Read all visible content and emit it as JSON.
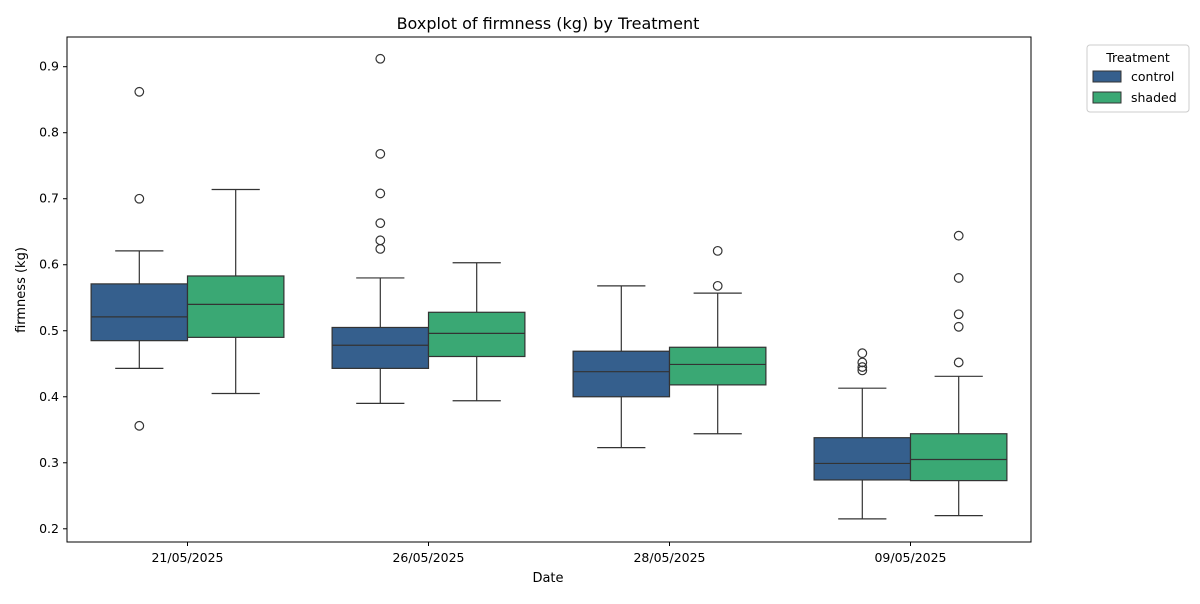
{
  "chart_data": {
    "type": "boxplot",
    "title": "Boxplot of firmness (kg) by Treatment",
    "xlabel": "Date",
    "ylabel": "firmness (kg)",
    "categories": [
      "21/05/2025",
      "26/05/2025",
      "28/05/2025",
      "09/05/2025"
    ],
    "ylim": [
      0.18,
      0.945
    ],
    "yticks": [
      0.2,
      0.3,
      0.4,
      0.5,
      0.6,
      0.7,
      0.8,
      0.9
    ],
    "ytick_labels": [
      "0.2",
      "0.3",
      "0.4",
      "0.5",
      "0.6",
      "0.7",
      "0.8",
      "0.9"
    ],
    "grid": false,
    "legend": {
      "title": "Treatment",
      "placement": "outside-top-right"
    },
    "series": [
      {
        "name": "control",
        "color": "#355f8d",
        "boxes": [
          {
            "whisker_low": 0.443,
            "q1": 0.485,
            "median": 0.521,
            "q3": 0.571,
            "whisker_high": 0.621,
            "outliers": [
              0.862,
              0.7,
              0.356
            ]
          },
          {
            "whisker_low": 0.39,
            "q1": 0.443,
            "median": 0.478,
            "q3": 0.505,
            "whisker_high": 0.58,
            "outliers": [
              0.912,
              0.768,
              0.708,
              0.663,
              0.637,
              0.624
            ]
          },
          {
            "whisker_low": 0.323,
            "q1": 0.4,
            "median": 0.438,
            "q3": 0.469,
            "whisker_high": 0.568,
            "outliers": []
          },
          {
            "whisker_low": 0.215,
            "q1": 0.274,
            "median": 0.299,
            "q3": 0.338,
            "whisker_high": 0.413,
            "outliers": [
              0.466,
              0.452,
              0.445,
              0.44
            ]
          }
        ]
      },
      {
        "name": "shaded",
        "color": "#3aa874",
        "boxes": [
          {
            "whisker_low": 0.405,
            "q1": 0.49,
            "median": 0.54,
            "q3": 0.583,
            "whisker_high": 0.714,
            "outliers": []
          },
          {
            "whisker_low": 0.394,
            "q1": 0.461,
            "median": 0.496,
            "q3": 0.528,
            "whisker_high": 0.603,
            "outliers": []
          },
          {
            "whisker_low": 0.344,
            "q1": 0.418,
            "median": 0.449,
            "q3": 0.475,
            "whisker_high": 0.557,
            "outliers": [
              0.621,
              0.568
            ]
          },
          {
            "whisker_low": 0.22,
            "q1": 0.273,
            "median": 0.305,
            "q3": 0.344,
            "whisker_high": 0.431,
            "outliers": [
              0.644,
              0.58,
              0.525,
              0.506,
              0.452
            ]
          }
        ]
      }
    ]
  }
}
